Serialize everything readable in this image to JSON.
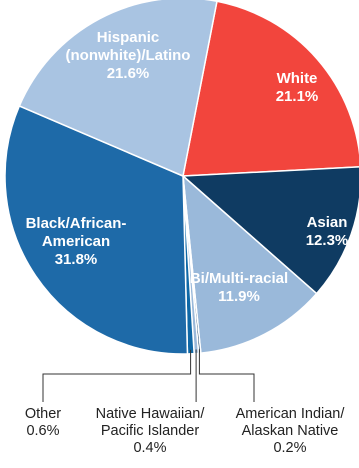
{
  "chart_data": {
    "type": "pie",
    "title": "",
    "slices": [
      {
        "name": "White",
        "value": 21.1,
        "label_lines": [
          "White",
          "21.1%"
        ],
        "color": "#f2453d",
        "text_color": "#ffffff"
      },
      {
        "name": "Asian",
        "value": 12.3,
        "label_lines": [
          "Asian",
          "12.3%"
        ],
        "color": "#0f3b62",
        "text_color": "#ffffff"
      },
      {
        "name": "Bi/Multi-racial",
        "value": 11.9,
        "label_lines": [
          "Bi/Multi-racial",
          "11.9%"
        ],
        "color": "#9ab9da",
        "text_color": "#ffffff"
      },
      {
        "name": "American Indian/Alaskan Native",
        "value": 0.2,
        "label_lines": [
          "American Indian/",
          "Alaskan Native",
          "0.2%"
        ],
        "color": "#0f3b62",
        "text_color": "#222222"
      },
      {
        "name": "Native Hawaiian/Pacific Islander",
        "value": 0.4,
        "label_lines": [
          "Native Hawaiian/",
          "Pacific Islander",
          "0.4%"
        ],
        "color": "#9ab9da",
        "text_color": "#222222"
      },
      {
        "name": "Other",
        "value": 0.6,
        "label_lines": [
          "Other",
          "0.6%"
        ],
        "color": "#0f68a6",
        "text_color": "#222222"
      },
      {
        "name": "Black/African-American",
        "value": 31.8,
        "label_lines": [
          "Black/African-",
          "American",
          "31.8%"
        ],
        "color": "#1e6aa8",
        "text_color": "#ffffff"
      },
      {
        "name": "Hispanic (nonwhite)/Latino",
        "value": 21.6,
        "label_lines": [
          "Hispanic",
          "(nonwhite)/Latino",
          "21.6%"
        ],
        "color": "#a9c4e2",
        "text_color": "#ffffff"
      }
    ]
  }
}
